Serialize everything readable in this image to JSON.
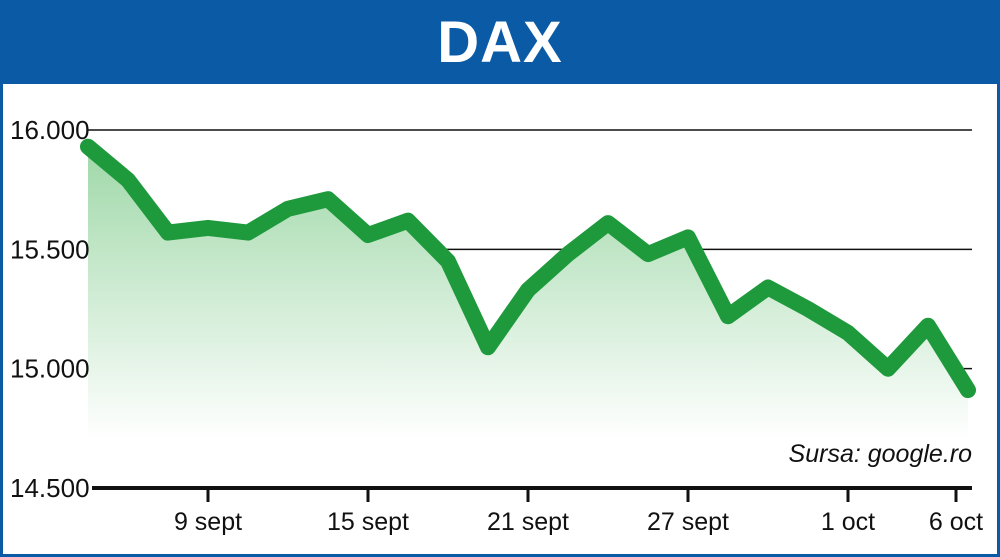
{
  "colors": {
    "header": "#0a5aa6",
    "line": "#1e9a3c",
    "grid": "#111111"
  },
  "chart_data": {
    "type": "line",
    "title": "DAX",
    "source": "Sursa: google.ro",
    "yticks": [
      "16.000",
      "15.500",
      "15.000",
      "14.500"
    ],
    "ytick_values": [
      16000,
      15500,
      15000,
      14500
    ],
    "ylim": [
      14500,
      16000
    ],
    "xticks": [
      {
        "label": "9 sept",
        "index": 3
      },
      {
        "label": "15 sept",
        "index": 7
      },
      {
        "label": "21 sept",
        "index": 11
      },
      {
        "label": "27 sept",
        "index": 15
      },
      {
        "label": "1 oct",
        "index": 19
      },
      {
        "label": "6 oct",
        "index": 22
      }
    ],
    "series": [
      {
        "values": [
          15930,
          15790,
          15570,
          15590,
          15570,
          15670,
          15710,
          15560,
          15620,
          15450,
          15090,
          15330,
          15480,
          15610,
          15480,
          15550,
          15220,
          15340,
          15250,
          15150,
          15000,
          15180,
          14910
        ]
      }
    ]
  }
}
